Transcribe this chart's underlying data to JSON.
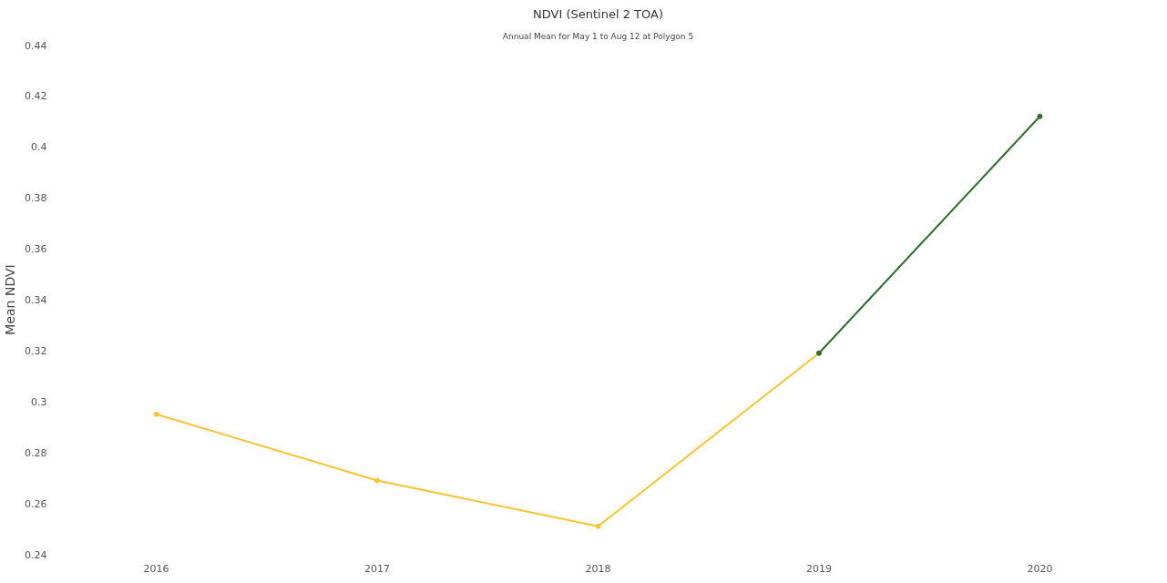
{
  "chart_data": {
    "type": "line",
    "title": "NDVI (Sentinel 2 TOA)",
    "subtitle": "Annual Mean for May 1 to Aug 12 at Polygon 5",
    "ylabel": "Mean NDVI",
    "categories": [
      "2016",
      "2017",
      "2018",
      "2019",
      "2020"
    ],
    "ylim": [
      0.24,
      0.44
    ],
    "yticks": [
      0.24,
      0.26,
      0.28,
      {
        "value": 0.3,
        "label": "0.3"
      },
      0.32,
      0.34,
      0.36,
      0.38,
      {
        "value": 0.4,
        "label": "0.4"
      },
      0.42,
      0.44
    ],
    "grid": false,
    "marker": "circle",
    "line_style": "solid",
    "series": [
      {
        "color": "#f7c531",
        "values": [
          0.295,
          0.269,
          0.251,
          0.319,
          null
        ]
      },
      {
        "color": "#2f6e2a",
        "values": [
          null,
          null,
          null,
          0.319,
          0.412
        ]
      }
    ]
  }
}
